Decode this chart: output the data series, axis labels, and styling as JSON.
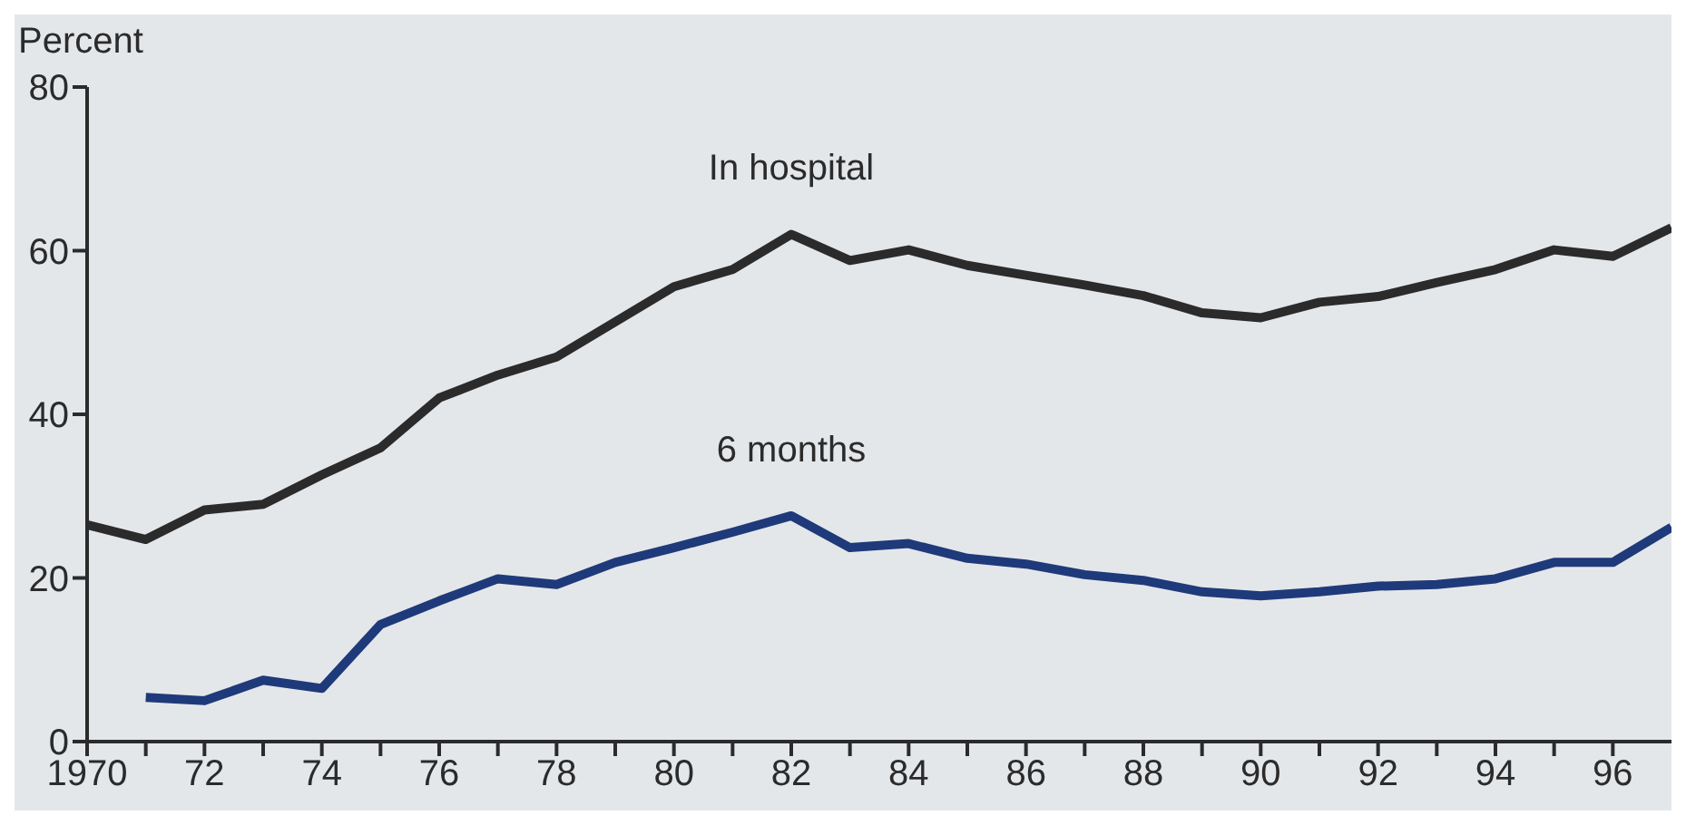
{
  "chart_data": {
    "type": "line",
    "ylabel": "Percent",
    "x": [
      1970,
      1971,
      1972,
      1973,
      1974,
      1975,
      1976,
      1977,
      1978,
      1979,
      1980,
      1981,
      1982,
      1983,
      1984,
      1985,
      1986,
      1987,
      1988,
      1989,
      1990,
      1991,
      1992,
      1993,
      1994,
      1995,
      1996,
      1997
    ],
    "series": [
      {
        "name": "In hospital",
        "color": "#2b2b2b",
        "values": [
          26.5,
          24.7,
          28.3,
          29,
          32.6,
          35.9,
          42,
          44.8,
          47,
          51.3,
          55.6,
          57.7,
          62,
          58.8,
          60.1,
          58.2,
          57,
          55.8,
          54.5,
          52.4,
          51.8,
          53.7,
          54.4,
          56.1,
          57.7,
          60.1,
          59.3,
          62.8
        ]
      },
      {
        "name": "6 months",
        "color": "#1f3a7a",
        "values": [
          null,
          5.4,
          5,
          7.5,
          6.5,
          14.3,
          17.2,
          19.9,
          19.2,
          21.9,
          23.7,
          25.6,
          27.6,
          23.7,
          24.2,
          22.4,
          21.7,
          20.4,
          19.7,
          18.3,
          17.8,
          18.3,
          19,
          19.2,
          19.9,
          21.9,
          21.9,
          26.2
        ]
      }
    ],
    "xlim": [
      1970,
      1997
    ],
    "xticks": [
      {
        "value": 1970,
        "label": "1970"
      },
      {
        "value": 1971,
        "label": null
      },
      {
        "value": 1972,
        "label": "72"
      },
      {
        "value": 1973,
        "label": null
      },
      {
        "value": 1974,
        "label": "74"
      },
      {
        "value": 1975,
        "label": null
      },
      {
        "value": 1976,
        "label": "76"
      },
      {
        "value": 1977,
        "label": null
      },
      {
        "value": 1978,
        "label": "78"
      },
      {
        "value": 1979,
        "label": null
      },
      {
        "value": 1980,
        "label": "80"
      },
      {
        "value": 1981,
        "label": null
      },
      {
        "value": 1982,
        "label": "82"
      },
      {
        "value": 1983,
        "label": null
      },
      {
        "value": 1984,
        "label": "84"
      },
      {
        "value": 1985,
        "label": null
      },
      {
        "value": 1986,
        "label": "86"
      },
      {
        "value": 1987,
        "label": null
      },
      {
        "value": 1988,
        "label": "88"
      },
      {
        "value": 1989,
        "label": null
      },
      {
        "value": 1990,
        "label": "90"
      },
      {
        "value": 1991,
        "label": null
      },
      {
        "value": 1992,
        "label": "92"
      },
      {
        "value": 1993,
        "label": null
      },
      {
        "value": 1994,
        "label": "94"
      },
      {
        "value": 1995,
        "label": null
      },
      {
        "value": 1996,
        "label": "96"
      }
    ],
    "ylim": [
      0,
      80
    ],
    "yticks": [
      0,
      20,
      40,
      60,
      80
    ],
    "grid": false,
    "legend": false,
    "marker": "none",
    "line_style": "solid"
  }
}
